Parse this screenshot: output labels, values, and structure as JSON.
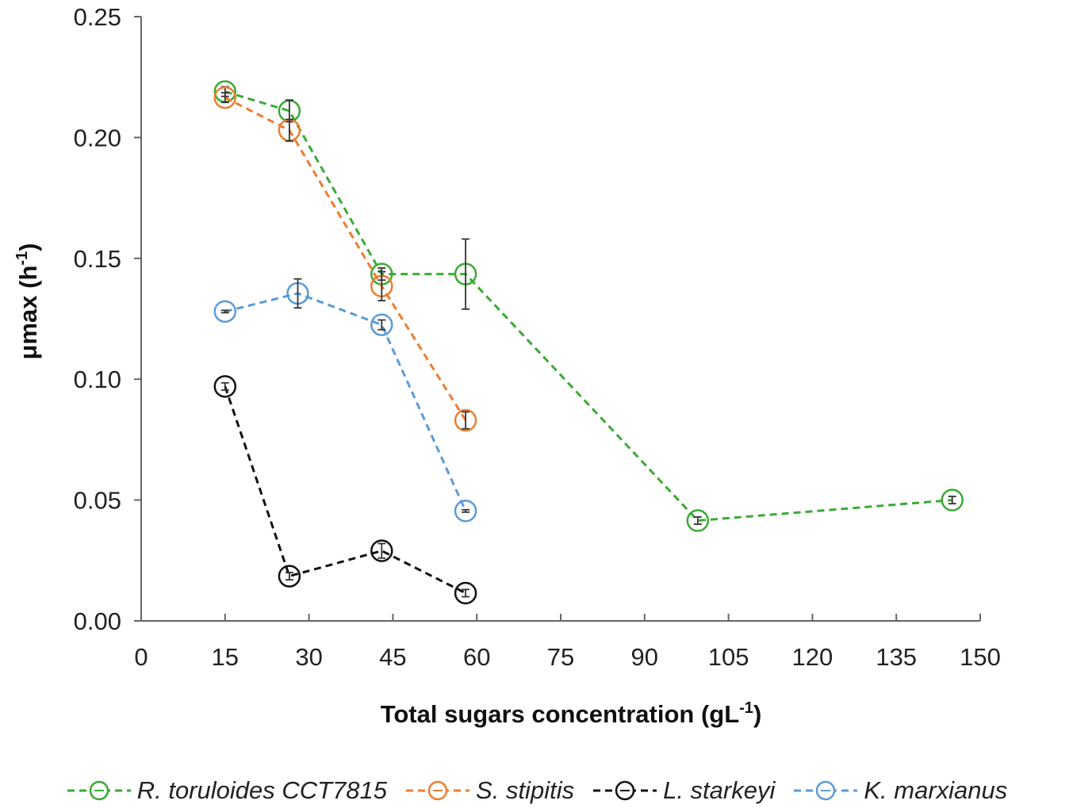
{
  "chart_data": {
    "type": "line",
    "title": "",
    "xlabel": "Total sugars concentration (gL",
    "xlabel_sup": "-1",
    "xlabel_end": ")",
    "ylabel": "μmax (h",
    "ylabel_sup": "-1",
    "ylabel_end": ")",
    "xlim": [
      0,
      150
    ],
    "ylim": [
      0,
      0.25
    ],
    "xticks": [
      "0",
      "15",
      "30",
      "45",
      "60",
      "75",
      "90",
      "105",
      "120",
      "135",
      "150"
    ],
    "yticks": [
      "0.00",
      "0.05",
      "0.10",
      "0.15",
      "0.20",
      "0.25"
    ],
    "grid": false,
    "legend_position": "bottom",
    "series": [
      {
        "name": "R. toruloides CCT7815",
        "color": "#3aaa35",
        "x": [
          15,
          26.5,
          43,
          58,
          99.5,
          145
        ],
        "y": [
          0.219,
          0.211,
          0.1435,
          0.1435,
          0.0415,
          0.05
        ],
        "err": [
          0.002,
          0.0045,
          0.0025,
          0.0145,
          0.0015,
          0.0015
        ]
      },
      {
        "name": "S. stipitis",
        "color": "#ed7d31",
        "x": [
          15,
          26.5,
          43,
          58
        ],
        "y": [
          0.2165,
          0.203,
          0.1385,
          0.083
        ],
        "err": [
          0.002,
          0.0045,
          0.006,
          0.0035
        ]
      },
      {
        "name": "L. starkeyi",
        "color": "#111111",
        "x": [
          15,
          26.5,
          43,
          58
        ],
        "y": [
          0.097,
          0.0185,
          0.029,
          0.0115
        ],
        "err": [
          0.0015,
          0.0015,
          0.003,
          0.0015
        ]
      },
      {
        "name": "K. marxianus",
        "color": "#5b9bd5",
        "x": [
          15,
          28,
          43,
          58
        ],
        "y": [
          0.128,
          0.1355,
          0.1225,
          0.0455
        ],
        "err": [
          0.0005,
          0.006,
          0.002,
          0.0005
        ]
      }
    ]
  }
}
